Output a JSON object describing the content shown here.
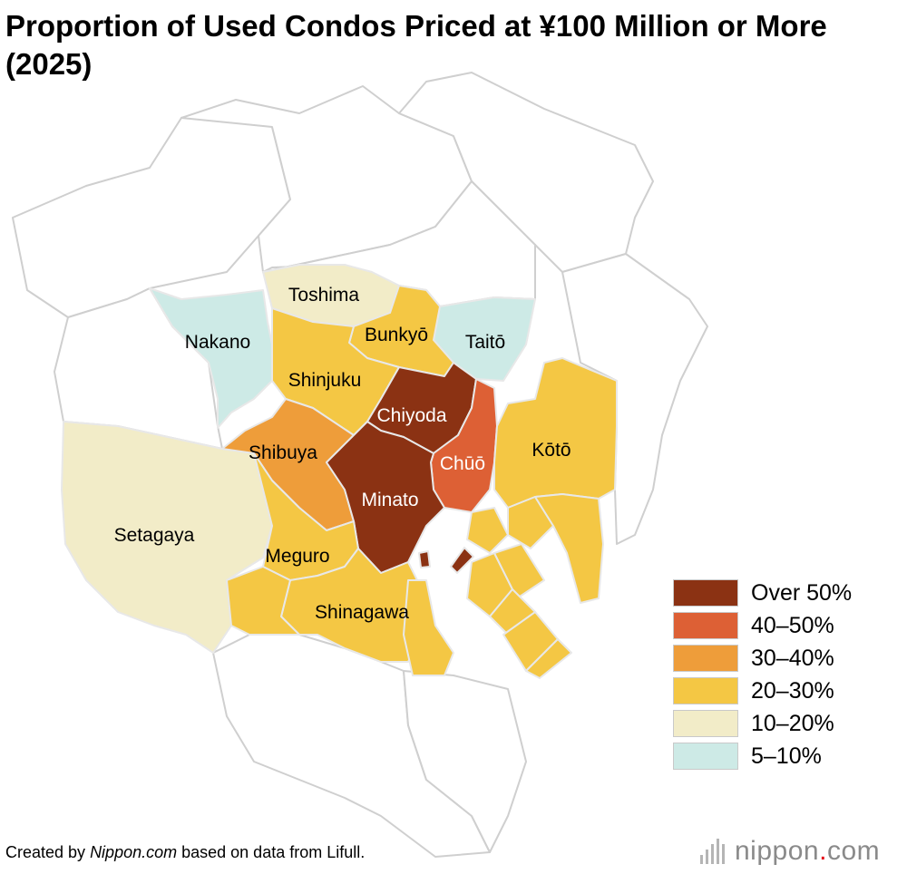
{
  "title": "Proportion of Used Condos Priced at ¥100 Million or More (2025)",
  "colors": {
    "over50": "#8B3213",
    "40to50": "#DD6035",
    "30to40": "#EE9D3A",
    "20to30": "#F4C744",
    "10to20": "#F2ECC8",
    "5to10": "#CDEAE6",
    "outline": "#cfcfcf",
    "background": "#ffffff"
  },
  "wards": {
    "chiyoda": "Chiyoda",
    "chuo": "Chūō",
    "minato": "Minato",
    "shibuya": "Shibuya",
    "shinjuku": "Shinjuku",
    "bunkyo": "Bunkyō",
    "meguro": "Meguro",
    "shinagawa": "Shinagawa",
    "koto": "Kōtō",
    "toshima": "Toshima",
    "setagaya": "Setagaya",
    "nakano": "Nakano",
    "taito": "Taitō"
  },
  "legend": [
    {
      "label": "Over 50%",
      "color": "#8B3213"
    },
    {
      "label": "40–50%",
      "color": "#DD6035"
    },
    {
      "label": "30–40%",
      "color": "#EE9D3A"
    },
    {
      "label": "20–30%",
      "color": "#F4C744"
    },
    {
      "label": "10–20%",
      "color": "#F2ECC8"
    },
    {
      "label": "5–10%",
      "color": "#CDEAE6"
    }
  ],
  "footer": {
    "prefix": "Created by ",
    "source": "Nippon.com",
    "suffix": " based on data from Lifull."
  },
  "logo": {
    "main": "nippon",
    "dot": ".",
    "tld": "com"
  }
}
